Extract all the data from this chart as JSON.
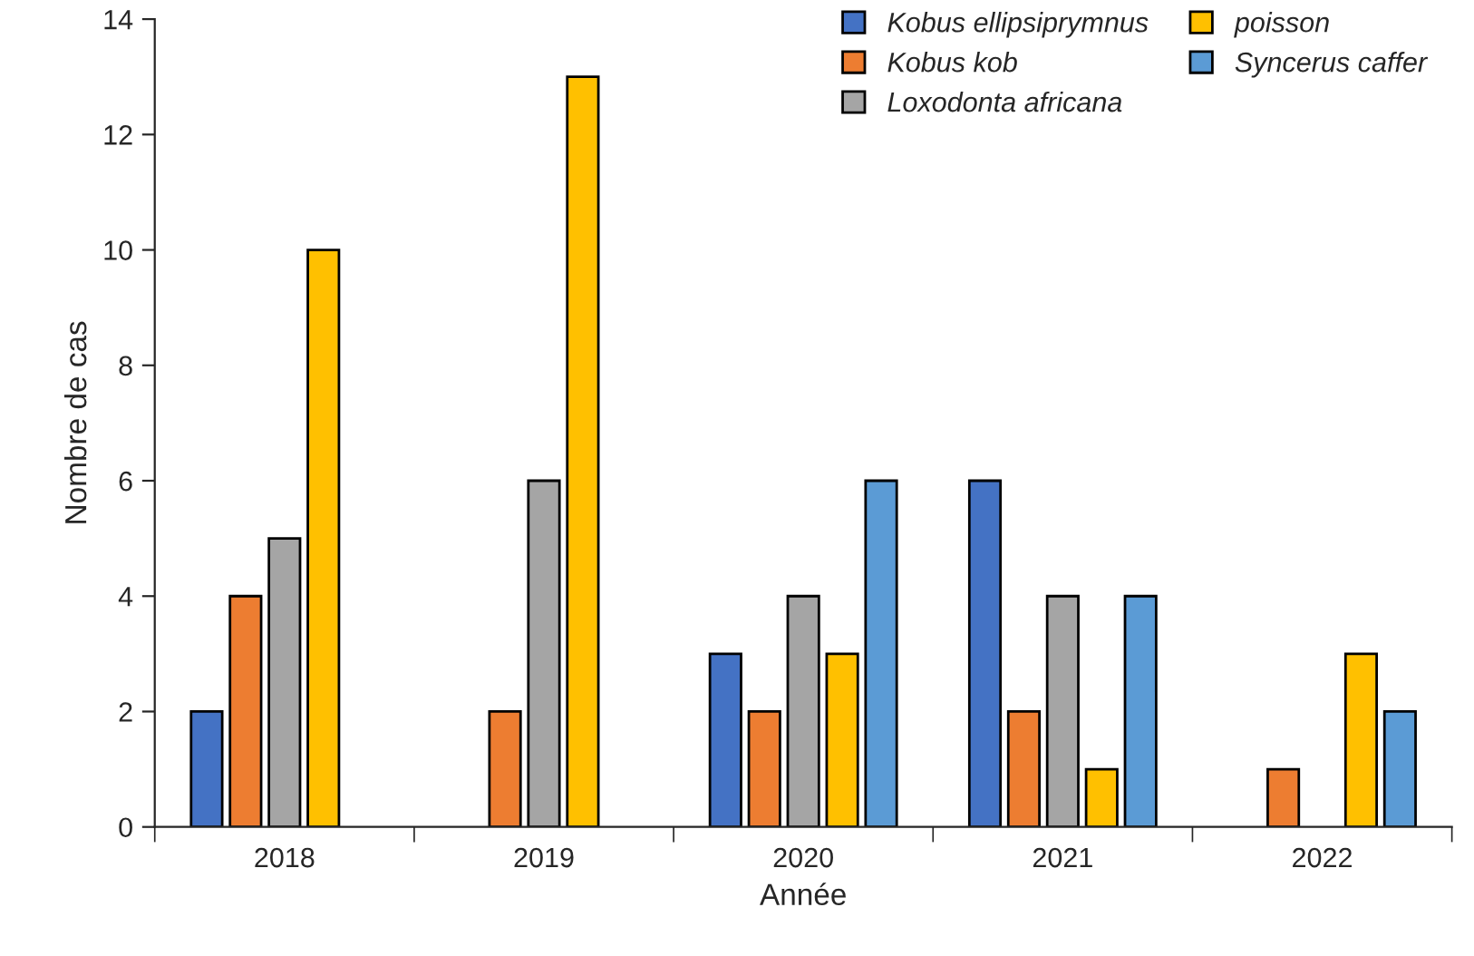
{
  "chart_data": {
    "type": "bar",
    "xlabel": "Année",
    "ylabel": "Nombre de cas",
    "categories": [
      "2018",
      "2019",
      "2020",
      "2021",
      "2022"
    ],
    "series": [
      {
        "name": "Kobus ellipsiprymnus",
        "color": "#4472c4",
        "values": [
          2,
          null,
          3,
          6,
          null
        ]
      },
      {
        "name": "Kobus kob",
        "color": "#ed7d31",
        "values": [
          4,
          2,
          2,
          2,
          1
        ]
      },
      {
        "name": "Loxodonta africana",
        "color": "#a5a5a5",
        "values": [
          5,
          6,
          4,
          4,
          null
        ]
      },
      {
        "name": "poisson",
        "color": "#ffc000",
        "values": [
          10,
          13,
          3,
          1,
          3
        ]
      },
      {
        "name": "Syncerus caffer",
        "color": "#5b9bd5",
        "values": [
          null,
          null,
          6,
          4,
          2
        ]
      }
    ],
    "ylim": [
      0,
      14
    ],
    "yticks": [
      0,
      2,
      4,
      6,
      8,
      10,
      12,
      14
    ],
    "grid": false,
    "legend": "top right"
  }
}
